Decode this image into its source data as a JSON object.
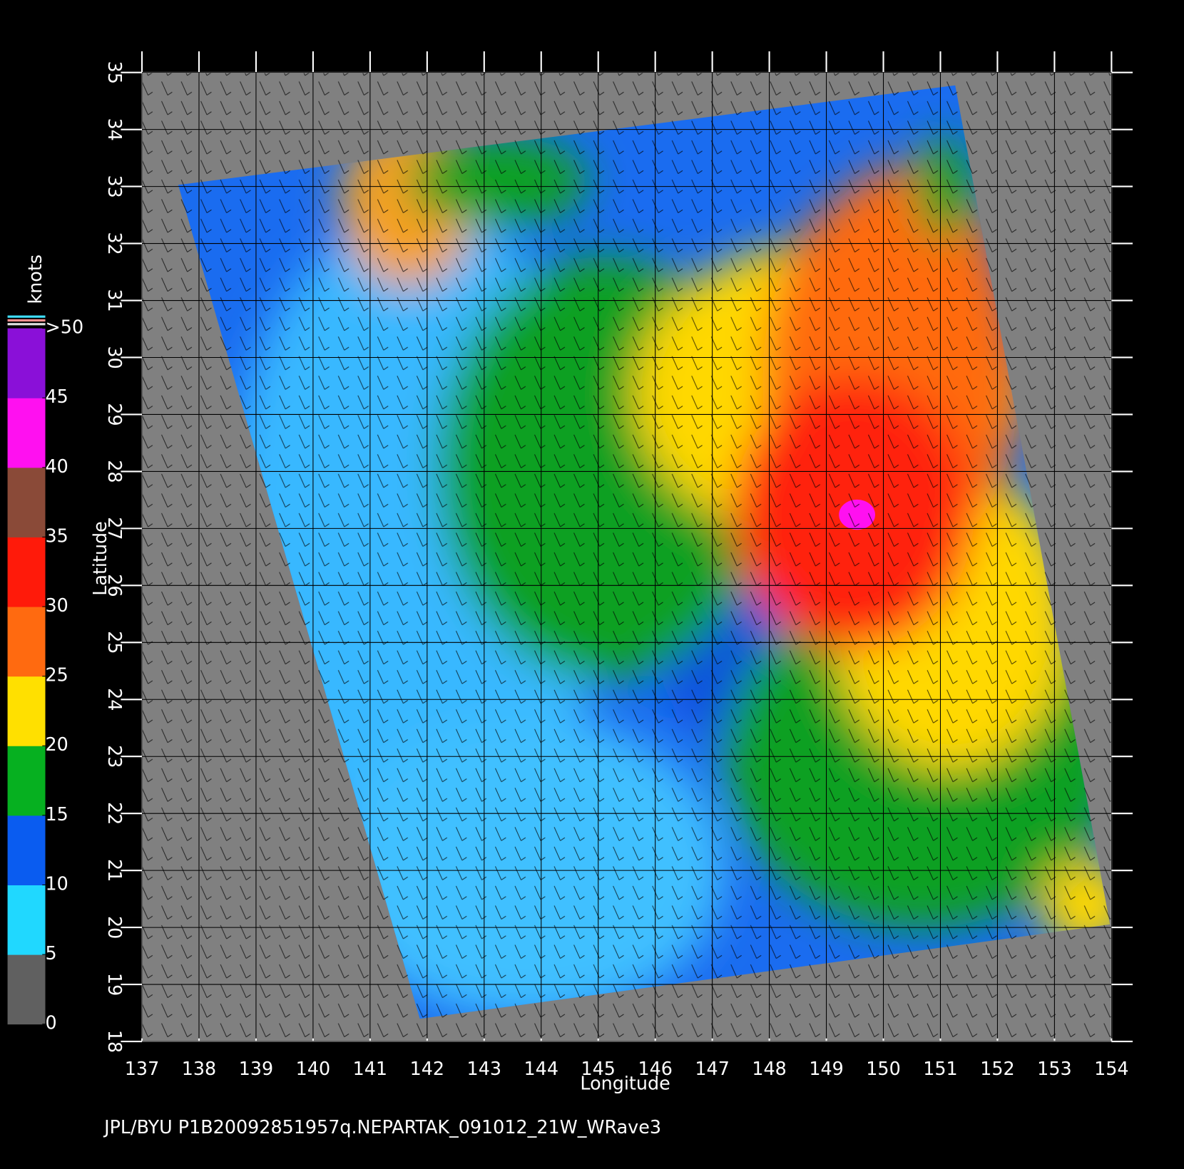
{
  "map": {
    "footer": "JPL/BYU  P1B20092851957q.NEPARTAK_091012_21W_WRave3",
    "x_label": "Longitude",
    "y_label": "Latitude",
    "xlim": [
      137,
      154
    ],
    "xticks": [
      137,
      138,
      139,
      140,
      141,
      142,
      143,
      144,
      145,
      146,
      147,
      148,
      149,
      150,
      151,
      152,
      153,
      154
    ],
    "ylim": [
      18,
      35
    ],
    "yticks": [
      18,
      19,
      20,
      21,
      22,
      23,
      24,
      25,
      26,
      27,
      28,
      29,
      30,
      31,
      32,
      33,
      34,
      35
    ],
    "grid": true,
    "colorbar": {
      "label": "knots",
      "lim": [
        0,
        50
      ],
      "ticks": [
        0,
        5,
        10,
        15,
        20,
        25,
        30,
        35,
        40,
        45,
        {
          "value": 50,
          "label": ">50"
        }
      ],
      "colors": [
        "#606060",
        "#20d8ff",
        "#0a5cf0",
        "#06b020",
        "#ffe000",
        "#ff6a10",
        "#ff1a0a",
        "#8a4a38",
        "#ff10f0",
        "#8a10d8"
      ]
    }
  }
}
